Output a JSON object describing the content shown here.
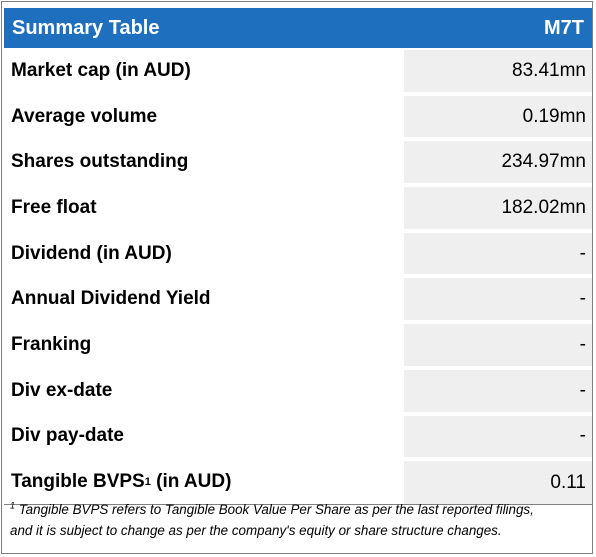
{
  "header": {
    "title": "Summary Table",
    "ticker": "M7T"
  },
  "rows": [
    {
      "label": "Market cap (in AUD)",
      "value": "83.41mn"
    },
    {
      "label": "Average volume",
      "value": "0.19mn"
    },
    {
      "label": "Shares outstanding",
      "value": "234.97mn"
    },
    {
      "label": "Free float",
      "value": "182.02mn"
    },
    {
      "label": "Dividend (in AUD)",
      "value": "-"
    },
    {
      "label": "Annual Dividend Yield",
      "value": "-"
    },
    {
      "label": "Franking",
      "value": "-"
    },
    {
      "label": "Div ex-date",
      "value": "-"
    },
    {
      "label": "Div pay-date",
      "value": "-"
    },
    {
      "label_pre": "Tangible BVPS",
      "label_sup": "1",
      "label_post": " (in AUD)",
      "value": "0.11"
    }
  ],
  "footnote": {
    "marker": "1",
    "line1": " Tangible BVPS refers to Tangible Book Value Per Share as per the last reported filings,",
    "line2": "and it is subject to change as per the company's equity or share structure changes."
  }
}
